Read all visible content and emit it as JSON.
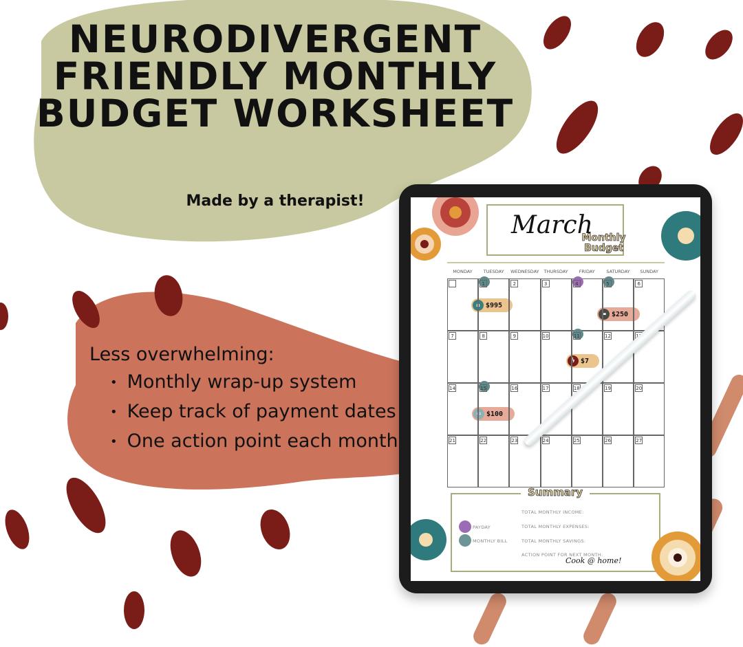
{
  "headline": "Neurodivergent Friendly Monthly Budget Worksheet",
  "subtitle": "Made by a therapist!",
  "benefits": {
    "heading": "Less overwhelming:",
    "items": [
      "Monthly wrap-up system",
      "Keep track of payment dates",
      "One action point each month"
    ]
  },
  "colors": {
    "olive": "#c8c9a0",
    "terracotta": "#cc735c",
    "dark_red": "#7a1c18",
    "teal": "#5f8a8b",
    "purple": "#9b6bb5"
  },
  "worksheet": {
    "month": "March",
    "title": "Monthly Budget",
    "days": [
      "MONDAY",
      "TUESDAY",
      "WEDNESDAY",
      "THURSDAY",
      "FRIDAY",
      "SATURDAY",
      "SUNDAY"
    ],
    "weeks": [
      [
        "",
        "1",
        "2",
        "3",
        "4",
        "5",
        "6"
      ],
      [
        "7",
        "8",
        "9",
        "10",
        "11",
        "12",
        "13"
      ],
      [
        "14",
        "15",
        "16",
        "17",
        "18",
        "19",
        "20"
      ],
      [
        "21",
        "22",
        "23",
        "24",
        "25",
        "26",
        "27"
      ]
    ],
    "bills": [
      {
        "icon": "house-icon",
        "amount": "$995"
      },
      {
        "icon": "car-icon",
        "amount": "$250"
      },
      {
        "icon": "lightning-icon",
        "amount": "$7"
      },
      {
        "icon": "card-icon",
        "amount": "$100"
      }
    ],
    "summary": {
      "title": "Summary",
      "legend": [
        "PAYDAY",
        "MONTHLY BILL"
      ],
      "fields": [
        "TOTAL MONTHLY INCOME:",
        "TOTAL MONTHLY EXPENSES:",
        "TOTAL MONTHLY SAVINGS:",
        "ACTION POINT FOR NEXT MONTH:"
      ],
      "action_point": "Cook @ home!"
    }
  }
}
